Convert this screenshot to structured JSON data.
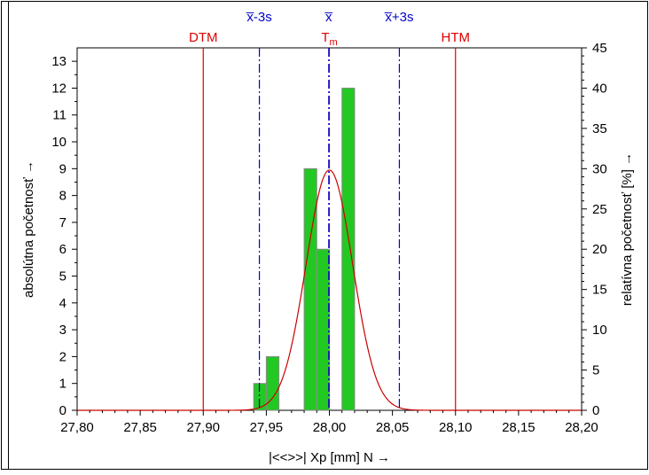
{
  "chart_data": {
    "type": "bar",
    "x_label": "|<<>>|  Xp [mm]  N →",
    "y_left_label": "absolútna početnosť →",
    "y_right_label": "relatívna početnosť  [%] →",
    "xlim": [
      27.8,
      28.2
    ],
    "ylim_left": [
      0,
      13.5
    ],
    "ylim_right": [
      0,
      45
    ],
    "x_ticks": [
      "27,80",
      "27,85",
      "27,90",
      "27,95",
      "28,00",
      "28,05",
      "28,10",
      "28,15",
      "28,20"
    ],
    "x_tick_values": [
      27.8,
      27.85,
      27.9,
      27.95,
      28.0,
      28.05,
      28.1,
      28.15,
      28.2
    ],
    "y_left_ticks": [
      0,
      1,
      2,
      3,
      4,
      5,
      6,
      7,
      8,
      9,
      10,
      11,
      12,
      13
    ],
    "y_right_ticks": [
      0,
      5,
      10,
      15,
      20,
      25,
      30,
      35,
      40,
      45
    ],
    "bars": [
      {
        "x_start": 27.94,
        "x_end": 27.95,
        "value": 1
      },
      {
        "x_start": 27.95,
        "x_end": 27.96,
        "value": 2
      },
      {
        "x_start": 27.98,
        "x_end": 27.99,
        "value": 9
      },
      {
        "x_start": 27.99,
        "x_end": 28.0,
        "value": 6
      },
      {
        "x_start": 28.0,
        "x_end": 28.01,
        "value": 0
      },
      {
        "x_start": 28.01,
        "x_end": 28.02,
        "value": 12
      }
    ],
    "bar_color": "#22c922",
    "normal_curve": {
      "mean": 28.0,
      "sigma": 0.0185,
      "peak": 8.95,
      "color": "#cc0000"
    },
    "reference_lines": [
      {
        "label": "DTM",
        "x": 27.9,
        "color": "#dd0000",
        "style": "solid",
        "row": "lower"
      },
      {
        "label": "HTM",
        "x": 28.1,
        "color": "#dd0000",
        "style": "solid",
        "row": "lower"
      },
      {
        "label": "T",
        "sub": "m",
        "x": 28.0,
        "color": "#dd0000",
        "style": "dashdot",
        "row": "lower"
      },
      {
        "label": "x̅-3s",
        "x": 27.9445,
        "color": "#0000cc",
        "style": "dashdot",
        "row": "upper"
      },
      {
        "label": "x̅",
        "x": 27.9995,
        "color": "#0000cc",
        "style": "dashdot",
        "row": "upper"
      },
      {
        "label": "x̅+3s",
        "x": 28.0555,
        "color": "#0000cc",
        "style": "dashdot",
        "row": "upper"
      }
    ]
  }
}
